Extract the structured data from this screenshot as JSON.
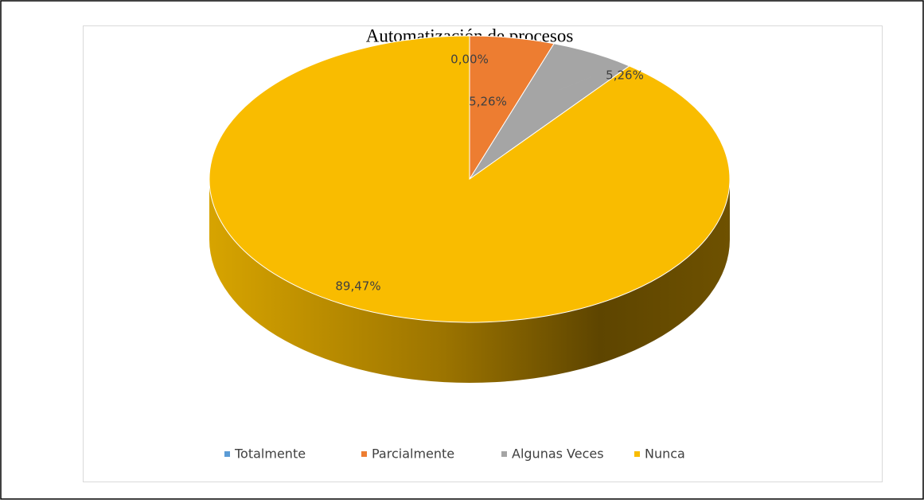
{
  "chart_data": {
    "type": "pie3d",
    "title": "Automatización de procesos",
    "categories": [
      "Totalmente",
      "Parcialmente",
      "Algunas Veces",
      "Nunca"
    ],
    "values": [
      0,
      5.26,
      5.26,
      89.47
    ],
    "value_labels": [
      "0,00%",
      "5,26%",
      "5,26%",
      "89,47%"
    ],
    "colors": [
      "#5b9bd5",
      "#ed7d31",
      "#a5a5a5",
      "#f9bc00"
    ],
    "legend": "bottom"
  }
}
